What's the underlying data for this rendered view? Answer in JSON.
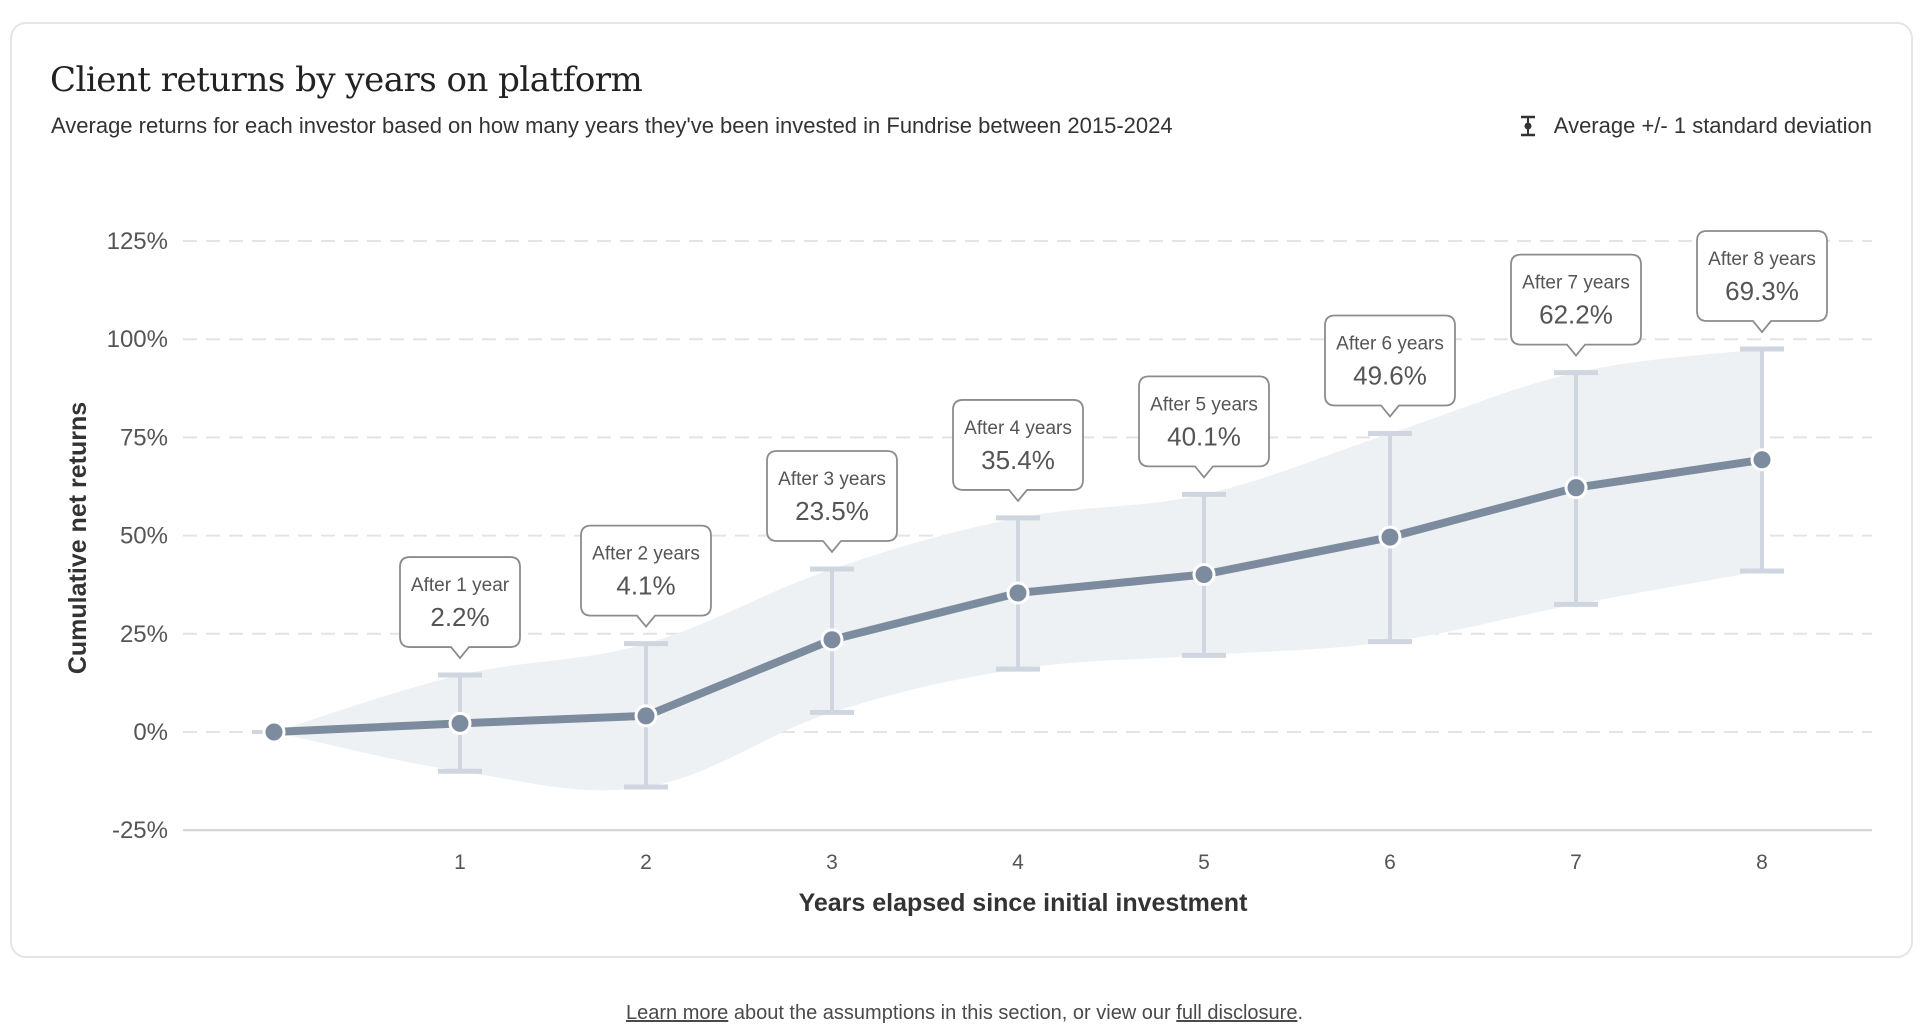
{
  "title": "Client returns by years on platform",
  "subtitle": "Average returns for each investor based on how many years they've been invested in Fundrise between 2015-2024",
  "legend_label": "Average +/- 1 standard deviation",
  "colors": {
    "line": "#7d8b9f",
    "band": "#eef1f4",
    "errorbar": "#cfd6df",
    "grid": "#e4e4e4",
    "tooltip_border": "#8c8c8c"
  },
  "chart_data": {
    "type": "line",
    "xlabel": "Years elapsed since initial investment",
    "ylabel": "Cumulative net returns",
    "ylim": [
      -25,
      125
    ],
    "y_ticks": [
      -25,
      0,
      25,
      50,
      75,
      100,
      125
    ],
    "y_tick_labels": [
      "-25%",
      "0%",
      "25%",
      "50%",
      "75%",
      "100%",
      "125%"
    ],
    "x": [
      0,
      1,
      2,
      3,
      4,
      5,
      6,
      7,
      8
    ],
    "x_tick_labels": [
      "1",
      "2",
      "3",
      "4",
      "5",
      "6",
      "7",
      "8"
    ],
    "mean": [
      0,
      2.2,
      4.1,
      23.5,
      35.4,
      40.1,
      49.6,
      62.2,
      69.3
    ],
    "upper": [
      0,
      14.5,
      22.5,
      41.5,
      54.5,
      60.5,
      76,
      91.5,
      97.5
    ],
    "lower": [
      0,
      -10,
      -14,
      5,
      16,
      19.5,
      23,
      32.5,
      41
    ],
    "callouts": [
      {
        "label": "After 1 year",
        "value": "2.2%"
      },
      {
        "label": "After 2 years",
        "value": "4.1%"
      },
      {
        "label": "After 3 years",
        "value": "23.5%"
      },
      {
        "label": "After 4 years",
        "value": "35.4%"
      },
      {
        "label": "After 5 years",
        "value": "40.1%"
      },
      {
        "label": "After 6 years",
        "value": "49.6%"
      },
      {
        "label": "After 7 years",
        "value": "62.2%"
      },
      {
        "label": "After 8 years",
        "value": "69.3%"
      }
    ],
    "grid": true,
    "legend_position": "top-right"
  },
  "footer": {
    "link1": "Learn more",
    "text1": " about the assumptions in this section, or view our ",
    "link2": "full disclosure",
    "text2": "."
  }
}
